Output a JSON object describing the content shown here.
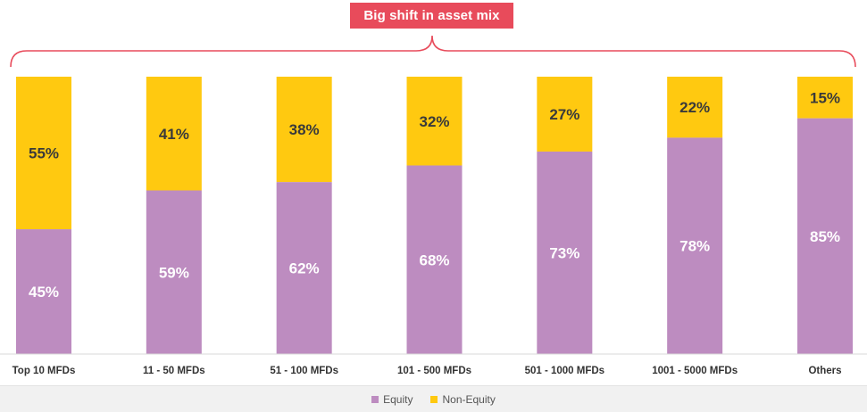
{
  "callout": {
    "text": "Big shift in asset mix"
  },
  "colors": {
    "equity": "#bd8cc0",
    "non_equity": "#ffc910",
    "callout_bg": "#e84b5b",
    "bracket": "#e84b5b"
  },
  "legend": {
    "equity_label": "Equity",
    "non_equity_label": "Non-Equity"
  },
  "chart_data": {
    "type": "bar",
    "stacked": "percent",
    "title": "",
    "xlabel": "",
    "ylabel": "",
    "ylim": [
      0,
      100
    ],
    "grid": false,
    "legend_position": "bottom",
    "categories": [
      "Top 10 MFDs",
      "11 - 50 MFDs",
      "51 - 100 MFDs",
      "101 - 500 MFDs",
      "501 - 1000 MFDs",
      "1001 - 5000 MFDs",
      "Others"
    ],
    "series": [
      {
        "name": "Equity",
        "values": [
          45,
          59,
          62,
          68,
          73,
          78,
          85
        ],
        "labels": [
          "45%",
          "59%",
          "62%",
          "68%",
          "73%",
          "78%",
          "85%"
        ]
      },
      {
        "name": "Non-Equity",
        "values": [
          55,
          41,
          38,
          32,
          27,
          22,
          15
        ],
        "labels": [
          "55%",
          "41%",
          "38%",
          "32%",
          "27%",
          "22%",
          "15%"
        ]
      }
    ]
  }
}
